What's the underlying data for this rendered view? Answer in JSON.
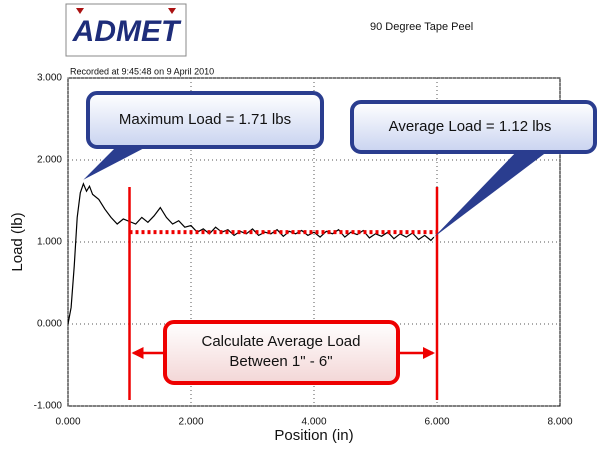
{
  "chart_data": {
    "type": "line",
    "logo": "ADMET",
    "title": "90 Degree Tape Peel",
    "subtitle": "Recorded at 9:45:48 on 9 April 2010",
    "x_label": "Position (in)",
    "y_label": "Load (lb)",
    "color": "#000000",
    "grid": true,
    "xlim": [
      0,
      8
    ],
    "ylim": [
      -1,
      3
    ],
    "xticks": [
      {
        "value": 0,
        "label": "0.000"
      },
      {
        "value": 2,
        "label": "2.000"
      },
      {
        "value": 4,
        "label": "4.000"
      },
      {
        "value": 6,
        "label": "6.000"
      },
      {
        "value": 8,
        "label": "8.000"
      }
    ],
    "yticks": [
      {
        "value": -1,
        "label": "-1.000"
      },
      {
        "value": 0,
        "label": "0.000"
      },
      {
        "value": 1,
        "label": "1.000"
      },
      {
        "value": 2,
        "label": "2.000"
      },
      {
        "value": 3,
        "label": "3.000"
      }
    ],
    "x": [
      0,
      0.05,
      0.1,
      0.15,
      0.2,
      0.25,
      0.3,
      0.35,
      0.4,
      0.5,
      0.6,
      0.7,
      0.8,
      0.9,
      1.0,
      1.1,
      1.2,
      1.3,
      1.4,
      1.5,
      1.6,
      1.7,
      1.8,
      1.9,
      2.0,
      2.1,
      2.2,
      2.3,
      2.4,
      2.5,
      2.6,
      2.7,
      2.8,
      2.9,
      3.0,
      3.1,
      3.2,
      3.3,
      3.4,
      3.5,
      3.6,
      3.7,
      3.8,
      3.9,
      4.0,
      4.1,
      4.2,
      4.3,
      4.4,
      4.5,
      4.6,
      4.7,
      4.8,
      4.9,
      5.0,
      5.1,
      5.2,
      5.3,
      5.4,
      5.5,
      5.6,
      5.7,
      5.8,
      5.9,
      5.95
    ],
    "values": [
      0.0,
      0.2,
      0.7,
      1.3,
      1.6,
      1.71,
      1.62,
      1.68,
      1.58,
      1.52,
      1.4,
      1.3,
      1.22,
      1.28,
      1.25,
      1.22,
      1.3,
      1.24,
      1.32,
      1.42,
      1.3,
      1.22,
      1.26,
      1.18,
      1.2,
      1.12,
      1.16,
      1.1,
      1.18,
      1.12,
      1.15,
      1.08,
      1.13,
      1.1,
      1.16,
      1.08,
      1.12,
      1.1,
      1.15,
      1.07,
      1.13,
      1.1,
      1.14,
      1.08,
      1.12,
      1.06,
      1.13,
      1.1,
      1.15,
      1.06,
      1.12,
      1.09,
      1.14,
      1.05,
      1.1,
      1.07,
      1.12,
      1.04,
      1.1,
      1.06,
      1.11,
      1.03,
      1.08,
      1.02,
      1.06
    ],
    "ref_lines_x": [
      1,
      6
    ],
    "avg_value": 1.12,
    "max_callout": "Maximum Load = 1.71 lbs",
    "avg_callout": "Average Load = 1.12 lbs",
    "range_callout": [
      "Calculate Average Load",
      "Between 1\" - 6\""
    ]
  }
}
